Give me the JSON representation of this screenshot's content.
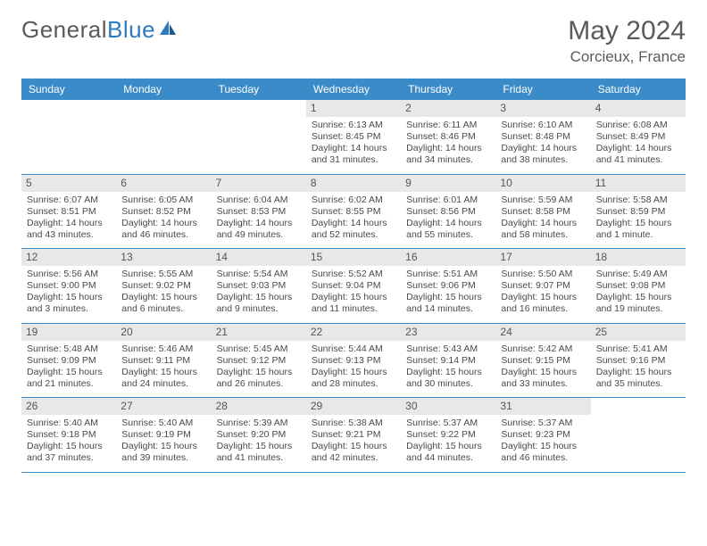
{
  "brand": {
    "word1": "General",
    "word2": "Blue"
  },
  "title": "May 2024",
  "location": "Corcieux, France",
  "day_names": [
    "Sunday",
    "Monday",
    "Tuesday",
    "Wednesday",
    "Thursday",
    "Friday",
    "Saturday"
  ],
  "colors": {
    "header_bg": "#3b8bc8",
    "header_text": "#ffffff",
    "daynum_bg": "#e8e8e8",
    "text": "#4a4a4a",
    "rule": "#3b8bc8",
    "logo_blue": "#2f7abf",
    "logo_gray": "#5a5a5a"
  },
  "weeks": [
    [
      null,
      null,
      null,
      {
        "n": "1",
        "sunrise": "6:13 AM",
        "sunset": "8:45 PM",
        "day_h": "14",
        "day_m": "31"
      },
      {
        "n": "2",
        "sunrise": "6:11 AM",
        "sunset": "8:46 PM",
        "day_h": "14",
        "day_m": "34"
      },
      {
        "n": "3",
        "sunrise": "6:10 AM",
        "sunset": "8:48 PM",
        "day_h": "14",
        "day_m": "38"
      },
      {
        "n": "4",
        "sunrise": "6:08 AM",
        "sunset": "8:49 PM",
        "day_h": "14",
        "day_m": "41"
      }
    ],
    [
      {
        "n": "5",
        "sunrise": "6:07 AM",
        "sunset": "8:51 PM",
        "day_h": "14",
        "day_m": "43"
      },
      {
        "n": "6",
        "sunrise": "6:05 AM",
        "sunset": "8:52 PM",
        "day_h": "14",
        "day_m": "46"
      },
      {
        "n": "7",
        "sunrise": "6:04 AM",
        "sunset": "8:53 PM",
        "day_h": "14",
        "day_m": "49"
      },
      {
        "n": "8",
        "sunrise": "6:02 AM",
        "sunset": "8:55 PM",
        "day_h": "14",
        "day_m": "52"
      },
      {
        "n": "9",
        "sunrise": "6:01 AM",
        "sunset": "8:56 PM",
        "day_h": "14",
        "day_m": "55"
      },
      {
        "n": "10",
        "sunrise": "5:59 AM",
        "sunset": "8:58 PM",
        "day_h": "14",
        "day_m": "58"
      },
      {
        "n": "11",
        "sunrise": "5:58 AM",
        "sunset": "8:59 PM",
        "day_h": "15",
        "day_m": "1",
        "singular": true
      }
    ],
    [
      {
        "n": "12",
        "sunrise": "5:56 AM",
        "sunset": "9:00 PM",
        "day_h": "15",
        "day_m": "3"
      },
      {
        "n": "13",
        "sunrise": "5:55 AM",
        "sunset": "9:02 PM",
        "day_h": "15",
        "day_m": "6"
      },
      {
        "n": "14",
        "sunrise": "5:54 AM",
        "sunset": "9:03 PM",
        "day_h": "15",
        "day_m": "9"
      },
      {
        "n": "15",
        "sunrise": "5:52 AM",
        "sunset": "9:04 PM",
        "day_h": "15",
        "day_m": "11"
      },
      {
        "n": "16",
        "sunrise": "5:51 AM",
        "sunset": "9:06 PM",
        "day_h": "15",
        "day_m": "14"
      },
      {
        "n": "17",
        "sunrise": "5:50 AM",
        "sunset": "9:07 PM",
        "day_h": "15",
        "day_m": "16"
      },
      {
        "n": "18",
        "sunrise": "5:49 AM",
        "sunset": "9:08 PM",
        "day_h": "15",
        "day_m": "19"
      }
    ],
    [
      {
        "n": "19",
        "sunrise": "5:48 AM",
        "sunset": "9:09 PM",
        "day_h": "15",
        "day_m": "21"
      },
      {
        "n": "20",
        "sunrise": "5:46 AM",
        "sunset": "9:11 PM",
        "day_h": "15",
        "day_m": "24"
      },
      {
        "n": "21",
        "sunrise": "5:45 AM",
        "sunset": "9:12 PM",
        "day_h": "15",
        "day_m": "26"
      },
      {
        "n": "22",
        "sunrise": "5:44 AM",
        "sunset": "9:13 PM",
        "day_h": "15",
        "day_m": "28"
      },
      {
        "n": "23",
        "sunrise": "5:43 AM",
        "sunset": "9:14 PM",
        "day_h": "15",
        "day_m": "30"
      },
      {
        "n": "24",
        "sunrise": "5:42 AM",
        "sunset": "9:15 PM",
        "day_h": "15",
        "day_m": "33"
      },
      {
        "n": "25",
        "sunrise": "5:41 AM",
        "sunset": "9:16 PM",
        "day_h": "15",
        "day_m": "35"
      }
    ],
    [
      {
        "n": "26",
        "sunrise": "5:40 AM",
        "sunset": "9:18 PM",
        "day_h": "15",
        "day_m": "37"
      },
      {
        "n": "27",
        "sunrise": "5:40 AM",
        "sunset": "9:19 PM",
        "day_h": "15",
        "day_m": "39"
      },
      {
        "n": "28",
        "sunrise": "5:39 AM",
        "sunset": "9:20 PM",
        "day_h": "15",
        "day_m": "41"
      },
      {
        "n": "29",
        "sunrise": "5:38 AM",
        "sunset": "9:21 PM",
        "day_h": "15",
        "day_m": "42"
      },
      {
        "n": "30",
        "sunrise": "5:37 AM",
        "sunset": "9:22 PM",
        "day_h": "15",
        "day_m": "44"
      },
      {
        "n": "31",
        "sunrise": "5:37 AM",
        "sunset": "9:23 PM",
        "day_h": "15",
        "day_m": "46"
      },
      null
    ]
  ]
}
